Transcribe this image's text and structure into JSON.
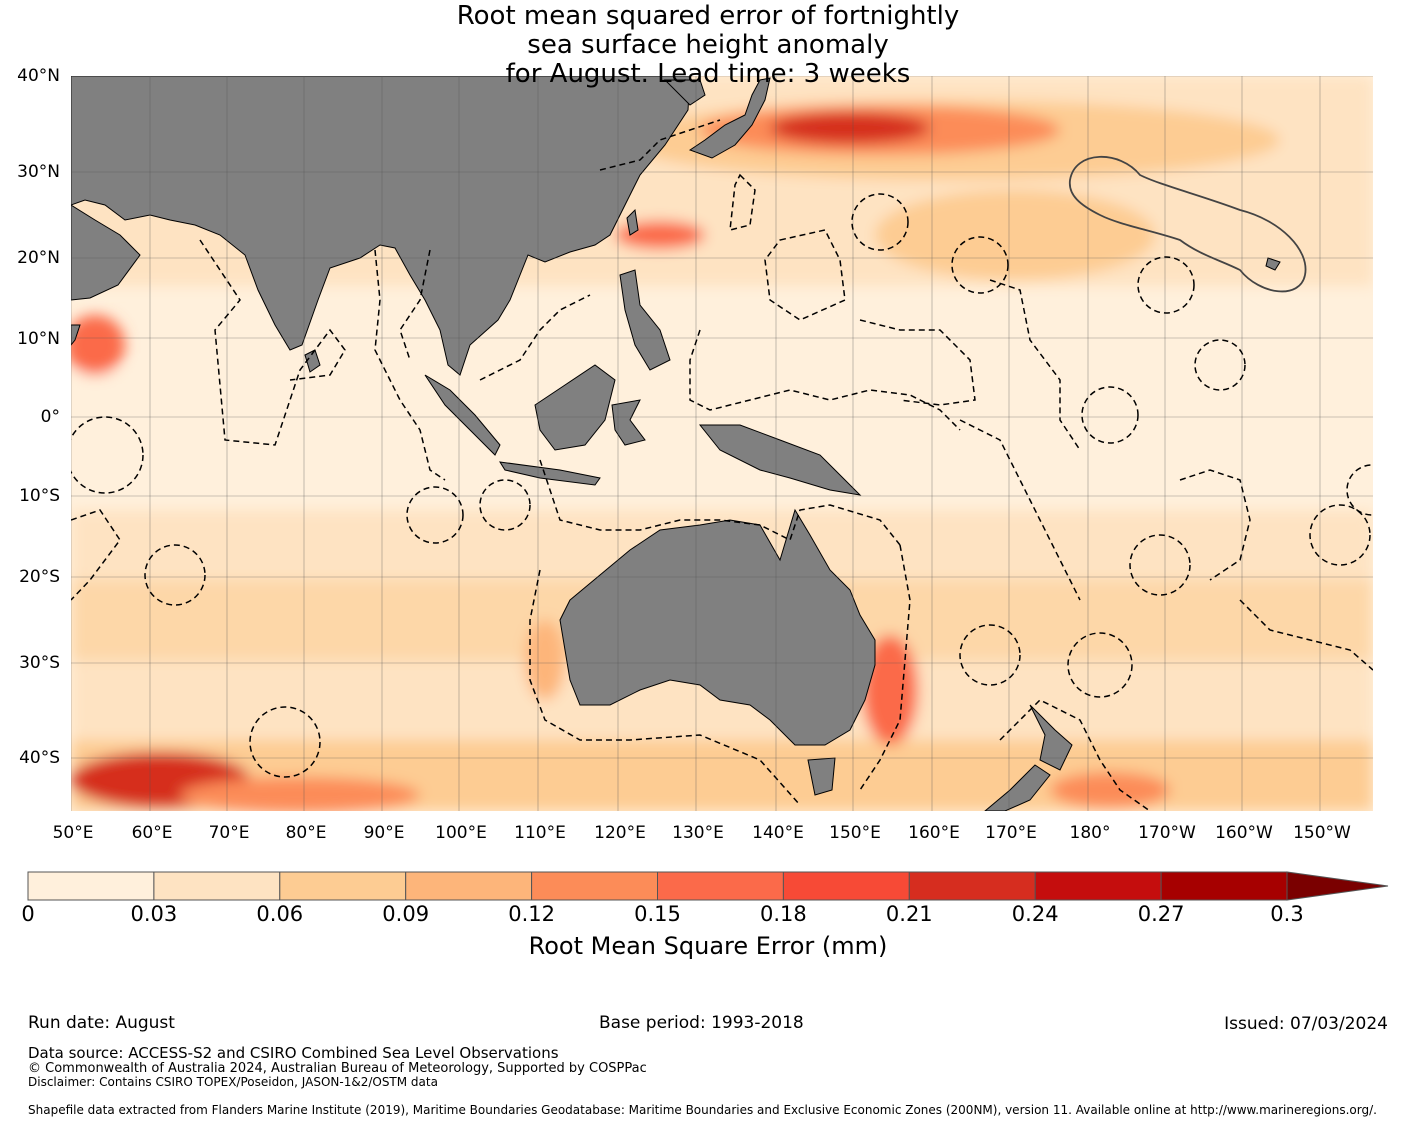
{
  "title": {
    "line1": "Root mean squared error of fortnightly",
    "line2": "sea surface height anomaly",
    "line3": "for August. Lead time: 3 weeks"
  },
  "map": {
    "lat_range": [
      -46,
      40
    ],
    "lon_range": [
      50,
      210
    ],
    "lat_labels": [
      "40°N",
      "30°N",
      "20°N",
      "10°N",
      "0°",
      "10°S",
      "20°S",
      "30°S",
      "40°S"
    ],
    "lon_labels": [
      "50°E",
      "60°E",
      "70°E",
      "80°E",
      "90°E",
      "100°E",
      "110°E",
      "120°E",
      "130°E",
      "140°E",
      "150°E",
      "160°E",
      "170°E",
      "180°",
      "170°W",
      "160°W",
      "150°W"
    ],
    "land_color": "#808080"
  },
  "colorbar": {
    "ticks": [
      "0",
      "0.03",
      "0.06",
      "0.09",
      "0.12",
      "0.15",
      "0.18",
      "0.21",
      "0.24",
      "0.27",
      "0.3"
    ],
    "colors": [
      "#fff0dc",
      "#fee3c2",
      "#fdcc93",
      "#fdb57a",
      "#fc8c58",
      "#fb6a4a",
      "#f74a36",
      "#d62d1f",
      "#c50d0d",
      "#a60000",
      "#7a0000"
    ],
    "label": "Root Mean Square Error (mm)"
  },
  "footer": {
    "run_date": "Run date: August",
    "base_period": "Base period: 1993-2018",
    "issued": "Issued: 07/03/2024",
    "data_source": "Data source: ACCESS-S2 and CSIRO Combined Sea Level Observations",
    "copyright": "© Commonwealth of Australia 2024, Australian Bureau of Meteorology, Supported by COSPPac",
    "disclaimer": "Disclaimer: Contains CSIRO TOPEX/Poseidon, JASON-1&2/OSTM data",
    "shapefile": "Shapefile data extracted from Flanders Marine Institute (2019), Maritime Boundaries Geodatabase: Maritime Boundaries and Exclusive Economic Zones (200NM), version 11. Available online at http://www.marineregions.org/."
  }
}
